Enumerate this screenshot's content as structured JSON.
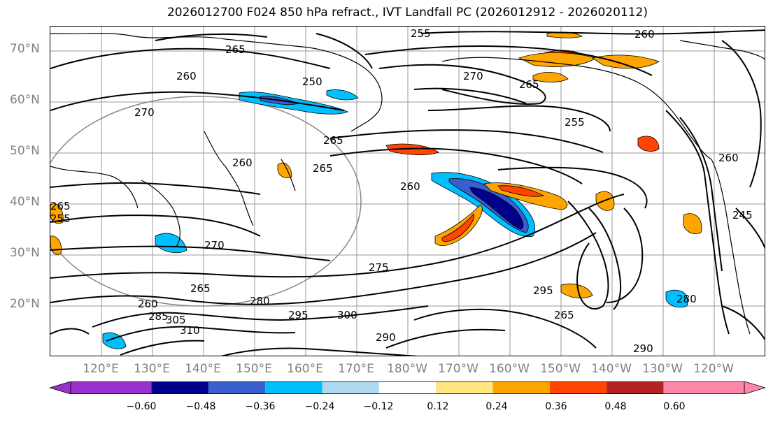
{
  "title": "2026012700 F024 850 hPa refract., IVT Landfall PC (2026012912 - 2026020112)",
  "lat_labels": [
    "70°N",
    "60°N",
    "50°N",
    "40°N",
    "30°N",
    "20°N"
  ],
  "lon_labels": [
    "120°E",
    "130°E",
    "140°E",
    "150°E",
    "160°E",
    "170°E",
    "180°W",
    "170°W",
    "160°W",
    "150°W",
    "140°W",
    "130°W",
    "120°W"
  ],
  "colorbar": {
    "ticks": [
      "−0.60",
      "−0.48",
      "−0.36",
      "−0.24",
      "−0.12",
      "0.12",
      "0.24",
      "0.36",
      "0.48",
      "0.60"
    ],
    "colors": [
      "#9932cc",
      "#00008b",
      "#3a5fcd",
      "#00bfff",
      "#add8f0",
      "#ffffff",
      "#ffe680",
      "#ffa500",
      "#ff4500",
      "#b22222",
      "#ff88aa"
    ]
  },
  "contour_labels": {
    "l255a": "255",
    "l260a": "260",
    "l265a": "265",
    "l260b": "260",
    "l250": "250",
    "l270a": "270",
    "l270b": "270",
    "l265b": "265",
    "l265c": "265",
    "l260c": "260",
    "l255b": "255",
    "l265d": "265",
    "l275": "275",
    "l280a": "280",
    "l295a": "295",
    "l290a": "290",
    "l300": "300",
    "l290b": "290",
    "l280b": "280",
    "l265e": "265",
    "l260d": "260",
    "l285": "285",
    "l310": "310",
    "l305": "305",
    "l270c": "270",
    "l255c": "255",
    "l260e": "260",
    "l245": "245",
    "l265f": "265",
    "l295b": "295",
    "l260f": "260",
    "l290c": "290",
    "l265g": "265"
  }
}
